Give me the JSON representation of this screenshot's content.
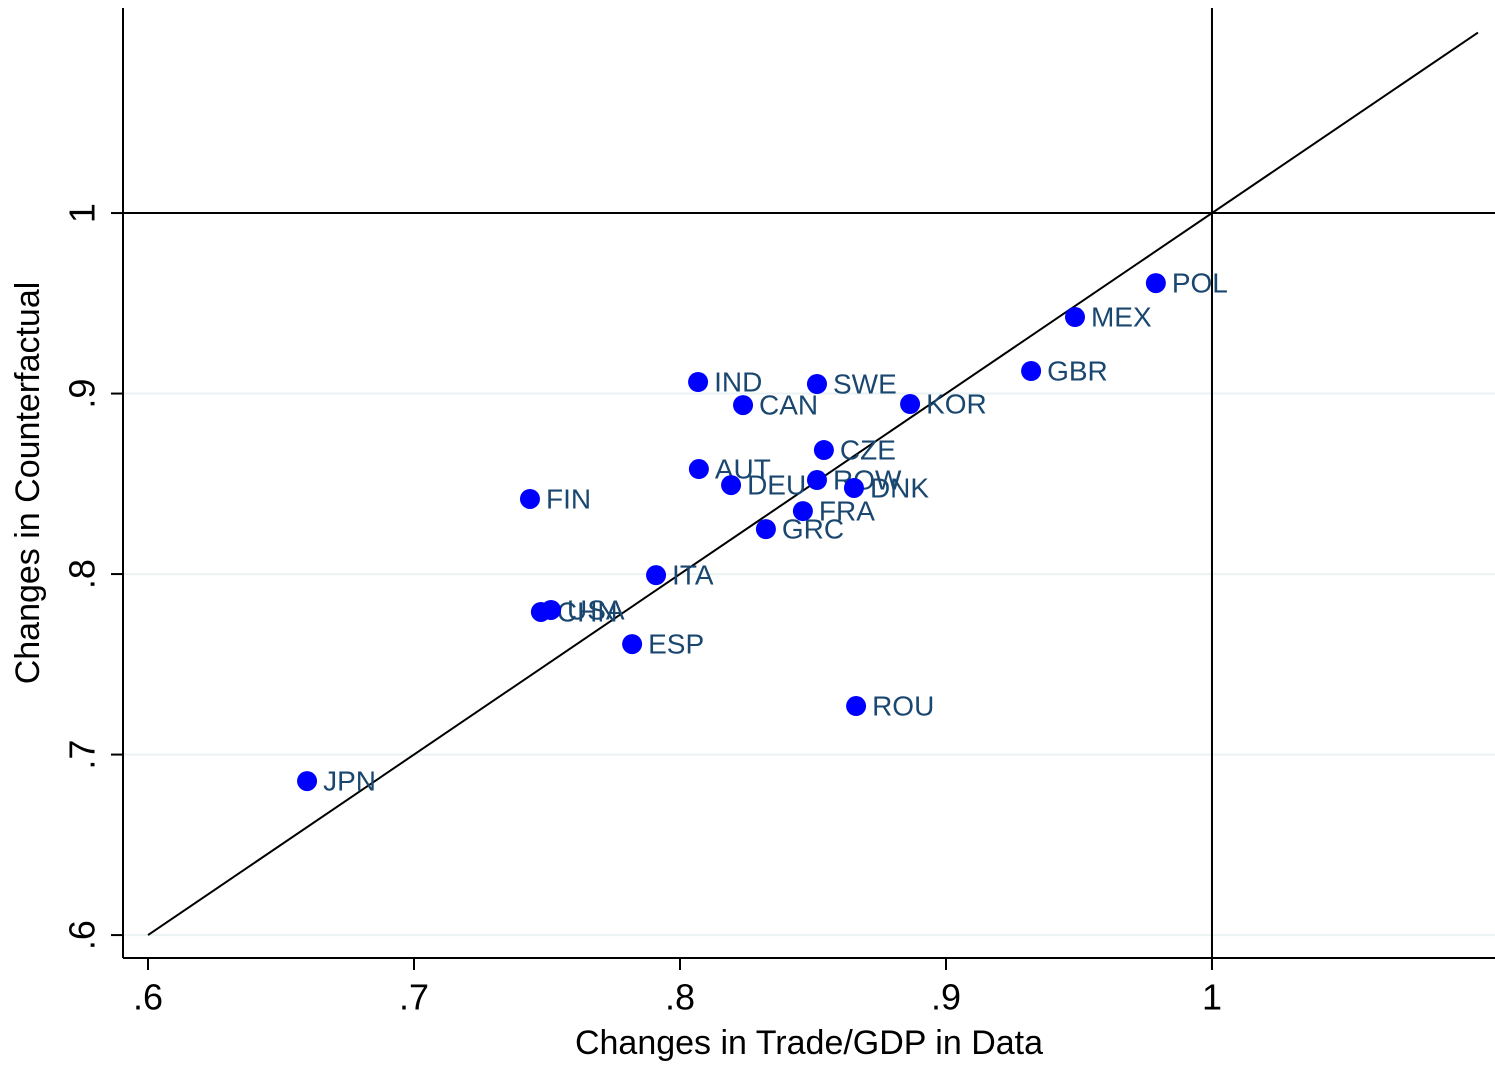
{
  "chart_data": {
    "type": "scatter",
    "xlabel": "Changes in Trade/GDP in Data",
    "ylabel": "Changes in Counterfactual",
    "point_labels": [
      "JPN",
      "FIN",
      "CHN",
      "USA",
      "ESP",
      "ITA",
      "IND",
      "AUT",
      "DEU",
      "CAN",
      "GRC",
      "FRA",
      "SWE",
      "ROW",
      "CZE",
      "ROU",
      "DNK",
      "KOR",
      "GBR",
      "MEX",
      "POL"
    ],
    "x": [
      0.6598,
      0.7436,
      0.7477,
      0.7515,
      0.782,
      0.791,
      0.8068,
      0.8071,
      0.8192,
      0.8237,
      0.8323,
      0.8462,
      0.8515,
      0.8515,
      0.8541,
      0.8662,
      0.8654,
      0.8865,
      0.932,
      0.9485,
      0.9789
    ],
    "values": [
      0.6853,
      0.8416,
      0.779,
      0.7801,
      0.7612,
      0.7994,
      0.9064,
      0.8582,
      0.8493,
      0.8936,
      0.8249,
      0.8349,
      0.9053,
      0.8521,
      0.8687,
      0.7269,
      0.8477,
      0.8942,
      0.9125,
      0.9424,
      0.9612
    ],
    "color": "#0000ff",
    "label_color": "#1a476f",
    "diagonal": [
      0.6,
      1.1
    ],
    "hline": 1,
    "vline": 1,
    "xlim": [
      0.5906,
      1.1064
    ],
    "ylim": [
      0.5873,
      1.1136
    ],
    "xticks": [
      {
        "value": 0.6,
        "label": ".6"
      },
      {
        "value": 0.7,
        "label": ".7"
      },
      {
        "value": 0.8,
        "label": ".8"
      },
      {
        "value": 0.9,
        "label": ".9"
      },
      1
    ],
    "yticks": [
      {
        "value": 0.6,
        "label": ".6"
      },
      {
        "value": 0.7,
        "label": ".7"
      },
      {
        "value": 0.8,
        "label": ".8"
      },
      {
        "value": 0.9,
        "label": ".9"
      },
      1
    ],
    "grid": true
  }
}
